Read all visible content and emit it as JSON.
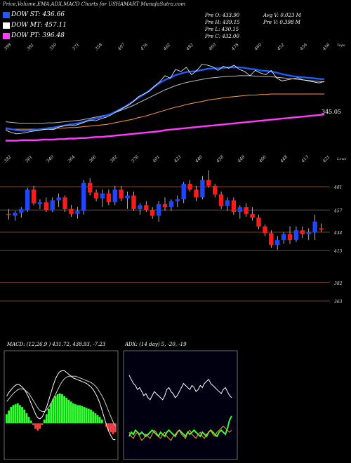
{
  "header": {
    "title": "Price,Volume,EMA,ADX,MACD Charts for USHAMART MunafaSutra.com",
    "legend": [
      {
        "label": "DOW ST: 436.66",
        "color": "#1f5cff"
      },
      {
        "label": "DOW MT: 457.11",
        "color": "#ffffff"
      },
      {
        "label": "DOW PT: 396.48",
        "color": "#ff3cff"
      }
    ],
    "stats": {
      "pre_o": "Pre  O: 433.90",
      "pre_h": "Pre  H: 439.15",
      "pre_l": "Pre  L: 430.15",
      "pre_c": "Pre  C: 432.00",
      "avg_v": "Avg V: 0.023  M",
      "pre_v": "Pre  V: 0.398  M"
    }
  },
  "chart_data": [
    {
      "type": "line",
      "panel": "price-ema",
      "right_label": "345.05",
      "corner_label": "Tops",
      "top_labels": [
        "398",
        "381",
        "350",
        "371",
        "358",
        "407",
        "476",
        "462",
        "482",
        "460",
        "478",
        "460",
        "452",
        "456",
        "456"
      ],
      "price": [
        356,
        352,
        349,
        350,
        352,
        354,
        355,
        357,
        358,
        357,
        362,
        364,
        366,
        365,
        368,
        372,
        375,
        374,
        378,
        381,
        386,
        392,
        398,
        403,
        410,
        420,
        425,
        430,
        440,
        448,
        460,
        455,
        472,
        468,
        476,
        462,
        470,
        482,
        480,
        477,
        470,
        478,
        474,
        480,
        472,
        468,
        460,
        470,
        465,
        462,
        470,
        456,
        450,
        452,
        454,
        456,
        452,
        450,
        448,
        446,
        449
      ],
      "ema_short": [
        360,
        358,
        356,
        355,
        355,
        356,
        357,
        358,
        360,
        361,
        363,
        365,
        367,
        368,
        370,
        373,
        376,
        378,
        381,
        384,
        388,
        393,
        398,
        404,
        411,
        418,
        424,
        431,
        439,
        446,
        452,
        456,
        461,
        464,
        467,
        468,
        469,
        471,
        473,
        474,
        474,
        475,
        476,
        476,
        476,
        475,
        473,
        472,
        470,
        469,
        468,
        466,
        463,
        461,
        459,
        458,
        457,
        456,
        455,
        454,
        453
      ],
      "ema_mid": [
        372,
        371,
        370,
        369,
        369,
        369,
        369,
        369,
        370,
        370,
        371,
        372,
        373,
        374,
        375,
        377,
        379,
        381,
        383,
        385,
        388,
        391,
        395,
        399,
        403,
        408,
        413,
        418,
        423,
        428,
        433,
        437,
        441,
        444,
        447,
        449,
        451,
        453,
        455,
        456,
        457,
        458,
        459,
        459,
        460,
        460,
        460,
        459,
        459,
        458,
        458,
        457,
        456,
        455,
        454,
        453,
        452,
        451,
        450,
        449,
        448
      ],
      "ema_long": [
        358,
        358,
        358,
        358,
        358,
        358,
        358,
        359,
        359,
        359,
        360,
        360,
        361,
        361,
        362,
        363,
        364,
        365,
        366,
        367,
        369,
        371,
        373,
        375,
        377,
        380,
        382,
        385,
        388,
        391,
        394,
        397,
        400,
        402,
        405,
        407,
        409,
        411,
        413,
        415,
        416,
        418,
        419,
        420,
        421,
        422,
        423,
        423,
        424,
        424,
        425,
        425,
        425,
        425,
        425,
        425,
        425,
        425,
        425,
        425,
        425
      ],
      "pt": [
        336,
        336,
        336,
        337,
        337,
        337,
        337,
        338,
        338,
        338,
        339,
        339,
        340,
        340,
        341,
        341,
        342,
        343,
        343,
        344,
        345,
        346,
        347,
        348,
        349,
        350,
        351,
        352,
        353,
        354,
        356,
        357,
        358,
        359,
        360,
        361,
        362,
        363,
        364,
        365,
        366,
        367,
        368,
        369,
        370,
        371,
        372,
        373,
        374,
        375,
        376,
        377,
        378,
        379,
        380,
        381,
        382,
        383,
        384,
        385,
        386
      ],
      "ylim": [
        330,
        500
      ]
    },
    {
      "type": "bar",
      "panel": "candlestick",
      "top_labels": [
        "382",
        "361",
        "340",
        "364",
        "366",
        "382",
        "376",
        "401",
        "423",
        "446",
        "458",
        "448",
        "466",
        "448",
        "413",
        "421"
      ],
      "corner_label": "Lows",
      "y_ticks": [
        481,
        457,
        434,
        415,
        382,
        363
      ],
      "ylim": [
        355,
        500
      ],
      "candles": [
        {
          "o": 453,
          "h": 458,
          "l": 447,
          "c": 452
        },
        {
          "o": 451,
          "h": 456,
          "l": 446,
          "c": 454
        },
        {
          "o": 454,
          "h": 460,
          "l": 449,
          "c": 458
        },
        {
          "o": 457,
          "h": 480,
          "l": 455,
          "c": 478
        },
        {
          "o": 478,
          "h": 482,
          "l": 462,
          "c": 464
        },
        {
          "o": 463,
          "h": 468,
          "l": 458,
          "c": 465
        },
        {
          "o": 465,
          "h": 470,
          "l": 455,
          "c": 457
        },
        {
          "o": 457,
          "h": 470,
          "l": 455,
          "c": 467
        },
        {
          "o": 467,
          "h": 474,
          "l": 460,
          "c": 470
        },
        {
          "o": 470,
          "h": 472,
          "l": 455,
          "c": 458
        },
        {
          "o": 458,
          "h": 462,
          "l": 450,
          "c": 453
        },
        {
          "o": 453,
          "h": 460,
          "l": 448,
          "c": 456
        },
        {
          "o": 456,
          "h": 488,
          "l": 452,
          "c": 485
        },
        {
          "o": 485,
          "h": 490,
          "l": 472,
          "c": 475
        },
        {
          "o": 475,
          "h": 478,
          "l": 466,
          "c": 469
        },
        {
          "o": 469,
          "h": 478,
          "l": 460,
          "c": 474
        },
        {
          "o": 474,
          "h": 478,
          "l": 462,
          "c": 465
        },
        {
          "o": 465,
          "h": 482,
          "l": 462,
          "c": 478
        },
        {
          "o": 478,
          "h": 482,
          "l": 466,
          "c": 469
        },
        {
          "o": 469,
          "h": 476,
          "l": 458,
          "c": 472
        },
        {
          "o": 472,
          "h": 476,
          "l": 456,
          "c": 458
        },
        {
          "o": 458,
          "h": 464,
          "l": 452,
          "c": 462
        },
        {
          "o": 462,
          "h": 466,
          "l": 455,
          "c": 457
        },
        {
          "o": 457,
          "h": 460,
          "l": 448,
          "c": 451
        },
        {
          "o": 451,
          "h": 466,
          "l": 445,
          "c": 463
        },
        {
          "o": 463,
          "h": 470,
          "l": 456,
          "c": 460
        },
        {
          "o": 460,
          "h": 468,
          "l": 456,
          "c": 466
        },
        {
          "o": 466,
          "h": 472,
          "l": 460,
          "c": 468
        },
        {
          "o": 468,
          "h": 486,
          "l": 464,
          "c": 484
        },
        {
          "o": 484,
          "h": 488,
          "l": 476,
          "c": 478
        },
        {
          "o": 478,
          "h": 482,
          "l": 466,
          "c": 470
        },
        {
          "o": 470,
          "h": 492,
          "l": 468,
          "c": 488
        },
        {
          "o": 488,
          "h": 498,
          "l": 480,
          "c": 482
        },
        {
          "o": 482,
          "h": 484,
          "l": 470,
          "c": 473
        },
        {
          "o": 473,
          "h": 476,
          "l": 458,
          "c": 461
        },
        {
          "o": 461,
          "h": 470,
          "l": 456,
          "c": 467
        },
        {
          "o": 467,
          "h": 470,
          "l": 452,
          "c": 455
        },
        {
          "o": 455,
          "h": 462,
          "l": 448,
          "c": 460
        },
        {
          "o": 460,
          "h": 464,
          "l": 450,
          "c": 453
        },
        {
          "o": 453,
          "h": 460,
          "l": 446,
          "c": 449
        },
        {
          "o": 449,
          "h": 452,
          "l": 437,
          "c": 440
        },
        {
          "o": 440,
          "h": 442,
          "l": 430,
          "c": 433
        },
        {
          "o": 433,
          "h": 436,
          "l": 418,
          "c": 421
        },
        {
          "o": 421,
          "h": 430,
          "l": 416,
          "c": 426
        },
        {
          "o": 426,
          "h": 434,
          "l": 422,
          "c": 432
        },
        {
          "o": 432,
          "h": 440,
          "l": 422,
          "c": 426
        },
        {
          "o": 426,
          "h": 440,
          "l": 424,
          "c": 436
        },
        {
          "o": 436,
          "h": 440,
          "l": 428,
          "c": 432
        },
        {
          "o": 432,
          "h": 438,
          "l": 426,
          "c": 434
        },
        {
          "o": 434,
          "h": 452,
          "l": 426,
          "c": 445
        },
        {
          "o": 438,
          "h": 443,
          "l": 434,
          "c": 437
        }
      ]
    },
    {
      "type": "bar",
      "panel": "macd",
      "title": "MACD: (12,26,9 ) 431.72, 438.93, -7.23",
      "histogram": [
        10,
        14,
        18,
        20,
        21,
        22,
        20,
        18,
        15,
        11,
        7,
        3,
        -2,
        -6,
        -8,
        -6,
        -2,
        4,
        10,
        16,
        22,
        27,
        30,
        32,
        33,
        32,
        30,
        28,
        26,
        24,
        22,
        21,
        20,
        20,
        19,
        18,
        17,
        16,
        15,
        13,
        11,
        9,
        7,
        4,
        0,
        -4,
        -8,
        -10,
        -12,
        -10
      ],
      "macd": [
        30,
        34,
        37,
        40,
        42,
        43,
        42,
        40,
        37,
        33,
        28,
        22,
        16,
        10,
        6,
        5,
        7,
        12,
        18,
        26,
        34,
        42,
        49,
        54,
        57,
        58,
        58,
        56,
        54,
        52,
        50,
        49,
        48,
        47,
        46,
        45,
        44,
        42,
        40,
        37,
        33,
        28,
        22,
        14,
        6,
        -2,
        -9,
        -14,
        -18,
        -18
      ],
      "signal": [
        24,
        27,
        30,
        33,
        35,
        37,
        38,
        38,
        37,
        35,
        33,
        29,
        25,
        21,
        17,
        14,
        13,
        13,
        15,
        18,
        22,
        27,
        32,
        37,
        42,
        46,
        49,
        51,
        52,
        52,
        52,
        52,
        51,
        50,
        49,
        48,
        47,
        46,
        45,
        43,
        41,
        38,
        34,
        30,
        25,
        19,
        13,
        7,
        1,
        -3
      ],
      "ylim": [
        -40,
        80
      ]
    },
    {
      "type": "line",
      "panel": "adx",
      "title": "ADX: (14 day) 5, -20, -19",
      "di_plus": [
        40,
        38,
        36,
        35,
        33,
        34,
        32,
        30,
        31,
        29,
        28,
        30,
        32,
        31,
        30,
        29,
        28,
        30,
        33,
        34,
        32,
        31,
        29,
        30,
        32,
        34,
        36,
        35,
        34,
        33,
        35,
        34,
        32,
        33,
        35,
        34,
        36,
        37,
        38,
        36,
        35,
        34,
        33,
        32,
        31,
        33,
        34,
        32,
        30,
        29
      ],
      "di_minus": [
        10,
        12,
        11,
        13,
        12,
        11,
        12,
        11,
        10,
        11,
        12,
        13,
        12,
        11,
        10,
        12,
        11,
        10,
        12,
        13,
        12,
        11,
        10,
        12,
        13,
        12,
        11,
        10,
        12,
        11,
        12,
        13,
        12,
        11,
        10,
        12,
        11,
        10,
        12,
        13,
        12,
        11,
        10,
        12,
        13,
        12,
        11,
        14,
        18,
        20
      ],
      "adx": [
        12,
        10,
        9,
        11,
        12,
        10,
        8,
        9,
        11,
        10,
        9,
        11,
        13,
        12,
        10,
        9,
        11,
        12,
        10,
        9,
        8,
        10,
        11,
        12,
        13,
        11,
        10,
        9,
        12,
        13,
        11,
        10,
        9,
        11,
        12,
        10,
        9,
        11,
        12,
        13,
        11,
        10,
        12,
        13,
        14,
        15,
        14,
        13,
        12,
        13
      ],
      "ylim": [
        0,
        50
      ]
    }
  ],
  "colors": {
    "up": "#1e46ff",
    "down": "#ff1a1a",
    "ema_short": "#1f5cff",
    "ema_mid": "#ffffff",
    "ema_long": "#ff9a3c",
    "pt": "#ff3cff",
    "gridline": "#a05a3c",
    "macd_pos": "#33ff33",
    "macd_neg": "#ff4444"
  }
}
